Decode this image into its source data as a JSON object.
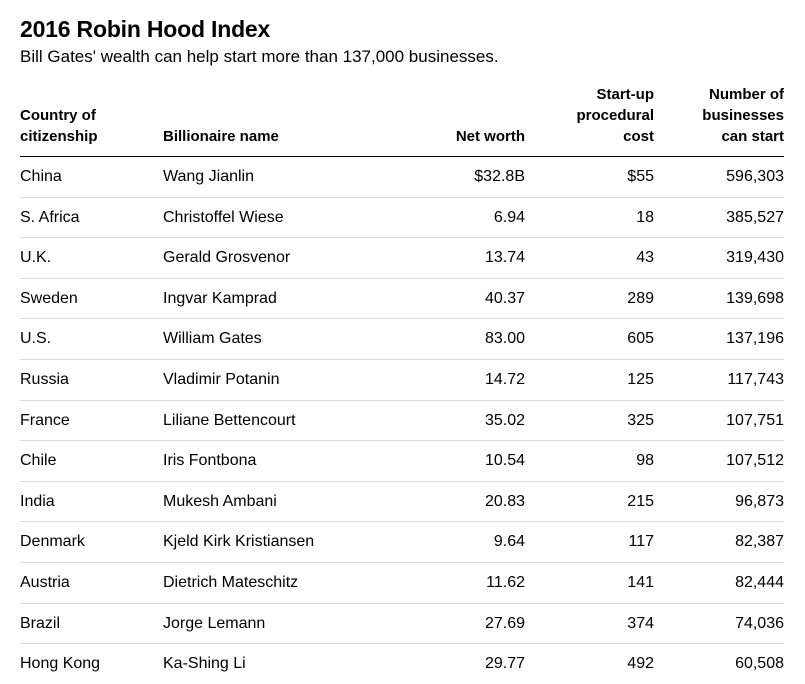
{
  "title": "2016 Robin Hood Index",
  "subtitle": "Bill Gates' wealth can help start more than 137,000 businesses.",
  "chart_data": {
    "type": "table",
    "title": "2016 Robin Hood Index",
    "subtitle": "Bill Gates' wealth can help start more than 137,000 businesses.",
    "columns": [
      [
        "Country of",
        "citizenship"
      ],
      [
        "Billionaire name"
      ],
      [
        "Net worth"
      ],
      [
        "Start-up",
        "procedural",
        "cost"
      ],
      [
        "Number of",
        "businesses",
        "can start"
      ]
    ],
    "rows": [
      [
        "China",
        "Wang Jianlin",
        "$32.8B",
        "$55",
        "596,303"
      ],
      [
        "S. Africa",
        "Christoffel Wiese",
        "6.94",
        "18",
        "385,527"
      ],
      [
        "U.K.",
        "Gerald Grosvenor",
        "13.74",
        "43",
        "319,430"
      ],
      [
        "Sweden",
        "Ingvar Kamprad",
        "40.37",
        "289",
        "139,698"
      ],
      [
        "U.S.",
        "William Gates",
        "83.00",
        "605",
        "137,196"
      ],
      [
        "Russia",
        "Vladimir Potanin",
        "14.72",
        "125",
        "117,743"
      ],
      [
        "France",
        "Liliane Bettencourt",
        "35.02",
        "325",
        "107,751"
      ],
      [
        "Chile",
        "Iris Fontbona",
        "10.54",
        "98",
        "107,512"
      ],
      [
        "India",
        "Mukesh Ambani",
        "20.83",
        "215",
        "96,873"
      ],
      [
        "Denmark",
        "Kjeld Kirk Kristiansen",
        "9.64",
        "117",
        "82,387"
      ],
      [
        "Austria",
        "Dietrich Mateschitz",
        "11.62",
        "141",
        "82,444"
      ],
      [
        "Brazil",
        "Jorge Lemann",
        "27.69",
        "374",
        "74,036"
      ],
      [
        "Hong Kong",
        "Ka-Shing Li",
        "29.77",
        "492",
        "60,508"
      ]
    ]
  }
}
